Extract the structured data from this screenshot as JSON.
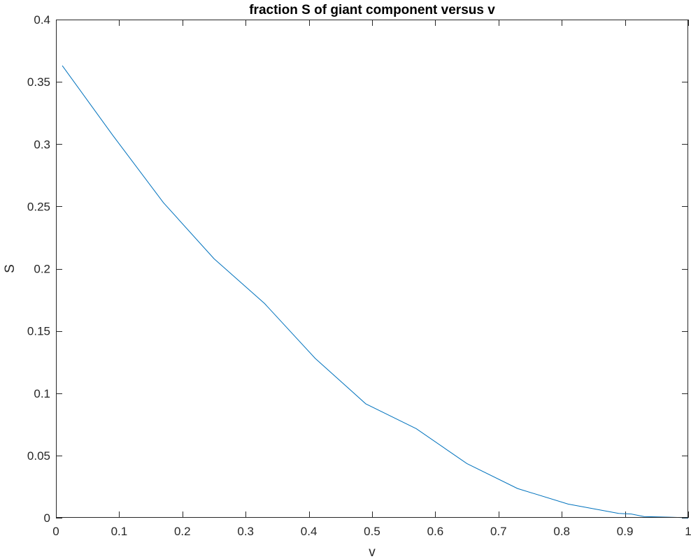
{
  "chart_data": {
    "type": "line",
    "title": "fraction S of giant component versus v",
    "xlabel": "v",
    "ylabel": "S",
    "xlim": [
      0,
      1
    ],
    "ylim": [
      0,
      0.4
    ],
    "xticks": [
      0,
      0.1,
      0.2,
      0.3,
      0.4,
      0.5,
      0.6,
      0.7,
      0.8,
      0.9,
      1
    ],
    "xtick_labels": [
      "0",
      "0.1",
      "0.2",
      "0.3",
      "0.4",
      "0.5",
      "0.6",
      "0.7",
      "0.8",
      "0.9",
      "1"
    ],
    "yticks": [
      0,
      0.05,
      0.1,
      0.15,
      0.2,
      0.25,
      0.3,
      0.35,
      0.4
    ],
    "ytick_labels": [
      "0",
      "0.05",
      "0.1",
      "0.15",
      "0.2",
      "0.25",
      "0.3",
      "0.35",
      "0.4"
    ],
    "grid": false,
    "box": true,
    "series": [
      {
        "color": "#0072BD",
        "x": [
          0.01,
          0.09,
          0.17,
          0.25,
          0.33,
          0.41,
          0.49,
          0.57,
          0.65,
          0.73,
          0.81,
          0.89,
          0.91,
          0.93,
          0.97,
          1.0
        ],
        "y": [
          0.363,
          0.307,
          0.253,
          0.208,
          0.172,
          0.128,
          0.0915,
          0.0715,
          0.0435,
          0.0235,
          0.011,
          0.0035,
          0.003,
          0.001,
          0.0005,
          0.0
        ]
      }
    ]
  }
}
